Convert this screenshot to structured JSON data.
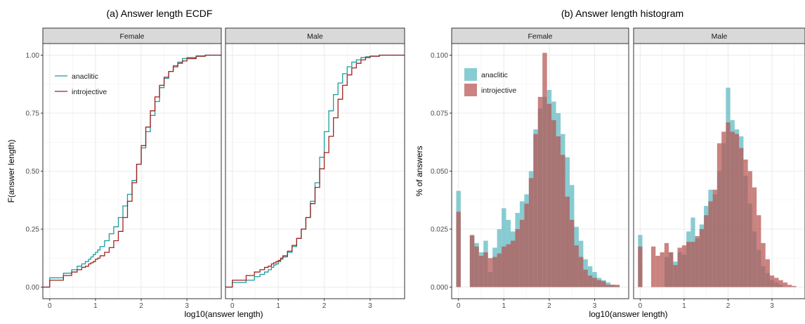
{
  "chart_data": [
    {
      "type": "line",
      "title": "(a) Answer length ECDF",
      "xlabel": "log10(answer length)",
      "ylabel": "F(answer length)",
      "xlim": [
        -0.15,
        3.75
      ],
      "ylim": [
        -0.05,
        1.05
      ],
      "x_ticks": [
        0,
        1,
        2,
        3
      ],
      "x_tick_labels": [
        "0",
        "1",
        "2",
        "3"
      ],
      "y_ticks": [
        0,
        0.25,
        0.5,
        0.75,
        1.0
      ],
      "y_tick_labels": [
        "0.00",
        "0.25",
        "0.50",
        "0.75",
        "1.00"
      ],
      "grid": true,
      "legend_position": "top-left",
      "legend": [
        "anaclitic",
        "introjective"
      ],
      "colors": {
        "anaclitic": "#1a9e9e",
        "introjective": "#a0221e"
      },
      "panels": [
        {
          "label": "Female",
          "series": [
            {
              "name": "anaclitic",
              "x": [
                -0.15,
                0,
                0.3,
                0.48,
                0.6,
                0.7,
                0.78,
                0.85,
                0.9,
                0.95,
                1.0,
                1.05,
                1.1,
                1.2,
                1.3,
                1.4,
                1.5,
                1.6,
                1.7,
                1.8,
                1.9,
                2.0,
                2.1,
                2.2,
                2.3,
                2.4,
                2.5,
                2.6,
                2.7,
                2.8,
                2.9,
                3.0,
                3.2,
                3.4,
                3.75
              ],
              "y": [
                0,
                0.04,
                0.06,
                0.075,
                0.09,
                0.1,
                0.11,
                0.12,
                0.13,
                0.14,
                0.15,
                0.16,
                0.175,
                0.2,
                0.23,
                0.26,
                0.3,
                0.35,
                0.4,
                0.46,
                0.53,
                0.6,
                0.67,
                0.74,
                0.8,
                0.86,
                0.9,
                0.93,
                0.955,
                0.97,
                0.985,
                0.99,
                0.997,
                1.0,
                1.0
              ]
            },
            {
              "name": "introjective",
              "x": [
                -0.15,
                0,
                0.3,
                0.48,
                0.6,
                0.7,
                0.78,
                0.85,
                0.9,
                0.95,
                1.0,
                1.05,
                1.1,
                1.2,
                1.3,
                1.4,
                1.5,
                1.6,
                1.7,
                1.8,
                1.9,
                2.0,
                2.1,
                2.2,
                2.3,
                2.4,
                2.5,
                2.6,
                2.7,
                2.8,
                2.9,
                3.0,
                3.2,
                3.4,
                3.75
              ],
              "y": [
                0,
                0.03,
                0.05,
                0.065,
                0.075,
                0.085,
                0.09,
                0.1,
                0.105,
                0.11,
                0.12,
                0.125,
                0.135,
                0.15,
                0.17,
                0.2,
                0.24,
                0.3,
                0.37,
                0.45,
                0.53,
                0.61,
                0.69,
                0.76,
                0.82,
                0.87,
                0.905,
                0.93,
                0.95,
                0.965,
                0.975,
                0.985,
                0.995,
                1.0,
                1.0
              ]
            }
          ]
        },
        {
          "label": "Male",
          "series": [
            {
              "name": "anaclitic",
              "x": [
                -0.15,
                0,
                0.3,
                0.48,
                0.6,
                0.7,
                0.78,
                0.85,
                0.9,
                0.95,
                1.0,
                1.05,
                1.1,
                1.2,
                1.3,
                1.4,
                1.5,
                1.6,
                1.7,
                1.8,
                1.9,
                2.0,
                2.1,
                2.2,
                2.3,
                2.4,
                2.5,
                2.6,
                2.7,
                2.8,
                2.9,
                3.0,
                3.2,
                3.4,
                3.75
              ],
              "y": [
                0,
                0.02,
                0.03,
                0.045,
                0.055,
                0.065,
                0.075,
                0.085,
                0.095,
                0.1,
                0.11,
                0.12,
                0.13,
                0.15,
                0.175,
                0.21,
                0.25,
                0.3,
                0.37,
                0.45,
                0.56,
                0.67,
                0.76,
                0.83,
                0.88,
                0.92,
                0.95,
                0.97,
                0.98,
                0.99,
                0.993,
                0.996,
                1.0,
                1.0,
                1.0
              ]
            },
            {
              "name": "introjective",
              "x": [
                -0.15,
                0,
                0.3,
                0.48,
                0.6,
                0.7,
                0.78,
                0.85,
                0.9,
                0.95,
                1.0,
                1.05,
                1.1,
                1.2,
                1.3,
                1.4,
                1.5,
                1.6,
                1.7,
                1.8,
                1.9,
                2.0,
                2.1,
                2.2,
                2.3,
                2.4,
                2.5,
                2.6,
                2.7,
                2.8,
                2.9,
                3.0,
                3.2,
                3.4,
                3.75
              ],
              "y": [
                0,
                0.03,
                0.05,
                0.065,
                0.075,
                0.085,
                0.09,
                0.1,
                0.105,
                0.11,
                0.115,
                0.125,
                0.135,
                0.155,
                0.18,
                0.21,
                0.25,
                0.3,
                0.36,
                0.43,
                0.51,
                0.58,
                0.65,
                0.73,
                0.81,
                0.87,
                0.915,
                0.945,
                0.965,
                0.98,
                0.99,
                0.995,
                1.0,
                1.0,
                1.0
              ]
            }
          ]
        }
      ]
    },
    {
      "type": "bar",
      "title": "(b) Answer length histogram",
      "xlabel": "log10(answer length)",
      "ylabel": "% of answers",
      "xlim": [
        -0.15,
        3.75
      ],
      "ylim": [
        -0.005,
        0.105
      ],
      "x_ticks": [
        0,
        1,
        2,
        3
      ],
      "x_tick_labels": [
        "0",
        "1",
        "2",
        "3"
      ],
      "y_ticks": [
        0,
        0.025,
        0.05,
        0.075,
        0.1
      ],
      "y_tick_labels": [
        "0.000",
        "0.025",
        "0.050",
        "0.075",
        "0.100"
      ],
      "grid": true,
      "legend_position": "top-left",
      "legend": [
        "anaclitic",
        "introjective"
      ],
      "colors": {
        "anaclitic": "#5ab9c0",
        "introjective": "#b5534f"
      },
      "bin_width": 0.1,
      "bin_centers": [
        0.0,
        0.1,
        0.2,
        0.3,
        0.4,
        0.5,
        0.6,
        0.7,
        0.8,
        0.9,
        1.0,
        1.1,
        1.2,
        1.3,
        1.4,
        1.5,
        1.6,
        1.7,
        1.8,
        1.9,
        2.0,
        2.1,
        2.2,
        2.3,
        2.4,
        2.5,
        2.6,
        2.7,
        2.8,
        2.9,
        3.0,
        3.1,
        3.2,
        3.3,
        3.4,
        3.5,
        3.6
      ],
      "panels": [
        {
          "label": "Female",
          "series": [
            {
              "name": "anaclitic",
              "values": [
                0.0415,
                0,
                0,
                0.022,
                0.019,
                0.015,
                0.02,
                0.0065,
                0.017,
                0.025,
                0.034,
                0.029,
                0.024,
                0.032,
                0.037,
                0.04,
                0.05,
                0.068,
                0.077,
                0.082,
                0.085,
                0.08,
                0.075,
                0.066,
                0.056,
                0.044,
                0.026,
                0.02,
                0.012,
                0.009,
                0.0065,
                0.004,
                0.003,
                0.002,
                0.001,
                0.0005,
                0
              ]
            },
            {
              "name": "introjective",
              "values": [
                0.0325,
                0,
                0,
                0.0225,
                0.0175,
                0.0135,
                0.015,
                0.0125,
                0.013,
                0.0145,
                0.0175,
                0.0185,
                0.02,
                0.025,
                0.029,
                0.036,
                0.047,
                0.066,
                0.082,
                0.101,
                0.079,
                0.072,
                0.065,
                0.057,
                0.039,
                0.029,
                0.018,
                0.013,
                0.0075,
                0.005,
                0.004,
                0.003,
                0.0025,
                0.001,
                0.001,
                0.001,
                0
              ]
            }
          ]
        },
        {
          "label": "Male",
          "series": [
            {
              "name": "anaclitic",
              "values": [
                0.0225,
                0,
                0,
                0.0,
                0.0,
                0.0,
                0.013,
                0.015,
                0.011,
                0.015,
                0.014,
                0.024,
                0.03,
                0.021,
                0.027,
                0.035,
                0.042,
                0.04,
                0.05,
                0.062,
                0.086,
                0.072,
                0.068,
                0.065,
                0.048,
                0.036,
                0.024,
                0.016,
                0.009,
                0.006,
                0.003,
                0.002,
                0.001,
                0,
                0,
                0,
                0
              ]
            },
            {
              "name": "introjective",
              "values": [
                0.0175,
                0,
                0.0,
                0.0175,
                0.0135,
                0.015,
                0.019,
                0.015,
                0.0095,
                0.017,
                0.018,
                0.0195,
                0.0195,
                0.022,
                0.025,
                0.031,
                0.037,
                0.042,
                0.062,
                0.067,
                0.071,
                0.067,
                0.066,
                0.06,
                0.055,
                0.05,
                0.043,
                0.031,
                0.019,
                0.012,
                0.005,
                0.004,
                0.003,
                0.002,
                0.001,
                0.0005,
                0
              ]
            }
          ]
        }
      ]
    }
  ]
}
